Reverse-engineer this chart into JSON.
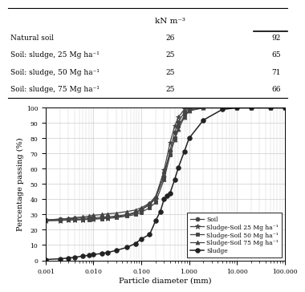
{
  "table_header_col2": "kN m⁻³",
  "table_line_right": "—",
  "table_rows": [
    {
      "label": "Natural soil",
      "kn": "26",
      "val": "92"
    },
    {
      "label": "Soil: sludge, 25 Mg ha⁻¹",
      "kn": "25",
      "val": "65"
    },
    {
      "label": "Soil: sludge, 50 Mg ha⁻¹",
      "kn": "25",
      "val": "71"
    },
    {
      "label": "Soil: sludge, 75 Mg ha⁻¹",
      "kn": "25",
      "val": "66"
    }
  ],
  "xlabel": "Particle diameter (mm)",
  "ylabel": "Percentage passing (%)",
  "ylim": [
    0,
    100
  ],
  "series": [
    {
      "label": "Soil",
      "marker": "o",
      "color": "#444444",
      "linewidth": 0.9,
      "markersize": 3.5,
      "filled": true,
      "x": [
        0.001,
        0.002,
        0.003,
        0.004,
        0.006,
        0.008,
        0.01,
        0.015,
        0.02,
        0.03,
        0.05,
        0.075,
        0.1,
        0.15,
        0.2,
        0.3,
        0.4,
        0.5,
        0.6,
        0.8,
        1.0,
        2.0,
        5.0,
        10.0,
        20.0,
        50.0,
        100.0
      ],
      "y": [
        26.5,
        27.0,
        27.2,
        27.5,
        27.7,
        27.8,
        28.0,
        28.3,
        28.5,
        29.0,
        30.0,
        31.5,
        33.5,
        37.0,
        41.0,
        55.0,
        72.0,
        84.0,
        91.0,
        97.0,
        99.5,
        100.0,
        100.0,
        100.0,
        100.0,
        100.0,
        100.0
      ]
    },
    {
      "label": "Sludge-Soil 25 Mg ha⁻¹",
      "marker": "*",
      "color": "#444444",
      "linewidth": 0.9,
      "markersize": 5.0,
      "filled": true,
      "x": [
        0.001,
        0.002,
        0.003,
        0.004,
        0.006,
        0.008,
        0.01,
        0.015,
        0.02,
        0.03,
        0.05,
        0.075,
        0.1,
        0.15,
        0.2,
        0.3,
        0.4,
        0.5,
        0.6,
        0.8,
        1.0,
        2.0,
        5.0,
        10.0,
        20.0,
        50.0,
        100.0
      ],
      "y": [
        26.0,
        26.3,
        26.5,
        26.6,
        26.8,
        27.0,
        27.2,
        27.5,
        27.8,
        28.5,
        29.5,
        31.0,
        33.0,
        36.5,
        40.5,
        59.0,
        77.0,
        88.0,
        94.0,
        99.0,
        100.0,
        100.0,
        100.0,
        100.0,
        100.0,
        100.0,
        100.0
      ]
    },
    {
      "label": "Sludge-Soil 50 Mg ha⁻¹",
      "marker": "s",
      "color": "#444444",
      "linewidth": 0.9,
      "markersize": 3.0,
      "filled": true,
      "x": [
        0.001,
        0.002,
        0.003,
        0.004,
        0.006,
        0.008,
        0.01,
        0.015,
        0.02,
        0.03,
        0.05,
        0.075,
        0.1,
        0.15,
        0.2,
        0.3,
        0.4,
        0.5,
        0.6,
        0.8,
        1.0,
        2.0,
        5.0,
        10.0,
        20.0,
        50.0,
        100.0
      ],
      "y": [
        26.0,
        26.2,
        26.4,
        26.5,
        26.7,
        26.8,
        27.0,
        27.3,
        27.5,
        28.0,
        29.0,
        30.0,
        31.5,
        34.5,
        38.0,
        53.0,
        69.0,
        80.0,
        88.0,
        95.0,
        98.5,
        100.0,
        100.0,
        100.0,
        100.0,
        100.0,
        100.0
      ]
    },
    {
      "label": "Sludge-Soil 75 Mg ha⁻¹",
      "marker": "^",
      "color": "#444444",
      "linewidth": 0.9,
      "markersize": 3.5,
      "filled": true,
      "x": [
        0.001,
        0.002,
        0.003,
        0.004,
        0.006,
        0.008,
        0.01,
        0.015,
        0.02,
        0.03,
        0.05,
        0.075,
        0.1,
        0.15,
        0.2,
        0.3,
        0.4,
        0.5,
        0.6,
        0.8,
        1.0,
        2.0,
        5.0,
        10.0,
        20.0,
        50.0,
        100.0
      ],
      "y": [
        26.5,
        27.0,
        27.5,
        28.0,
        28.5,
        29.0,
        29.5,
        30.0,
        30.5,
        31.0,
        32.0,
        33.0,
        34.5,
        37.5,
        42.0,
        58.0,
        70.0,
        79.0,
        86.0,
        94.0,
        98.0,
        100.0,
        100.0,
        100.0,
        100.0,
        100.0,
        100.0
      ]
    },
    {
      "label": "Sludge",
      "marker": "o",
      "color": "#222222",
      "linewidth": 1.1,
      "markersize": 4.0,
      "filled": true,
      "x": [
        0.001,
        0.002,
        0.003,
        0.004,
        0.006,
        0.008,
        0.01,
        0.015,
        0.02,
        0.03,
        0.05,
        0.075,
        0.1,
        0.15,
        0.2,
        0.25,
        0.3,
        0.35,
        0.4,
        0.5,
        0.6,
        0.8,
        1.0,
        2.0,
        5.0,
        10.0,
        20.0,
        50.0,
        100.0
      ],
      "y": [
        0.5,
        1.0,
        1.5,
        2.0,
        2.8,
        3.3,
        3.8,
        4.5,
        5.2,
        6.5,
        8.5,
        11.0,
        14.0,
        17.0,
        26.0,
        32.0,
        40.0,
        42.5,
        44.0,
        53.0,
        61.0,
        71.5,
        80.0,
        92.0,
        99.0,
        100.0,
        100.0,
        100.0,
        100.0
      ]
    }
  ],
  "grid_color": "#cccccc",
  "bg_color": "#ffffff",
  "xticks": [
    0.001,
    0.01,
    0.1,
    1.0,
    10.0,
    100.0
  ],
  "xtick_labels": [
    "0.001",
    "0.010",
    "0.100",
    "1.000",
    "10.000",
    "100.000"
  ],
  "yticks": [
    0,
    10,
    20,
    30,
    40,
    50,
    60,
    70,
    80,
    90,
    100
  ],
  "legend_labels": [
    "Soil",
    "Sludge-Soil 25 Mg ha⁻¹",
    "Sludge-Soil 50 Mg ha⁻¹",
    "Sludge-Soil 75 Mg ha⁻¹",
    "Sludge"
  ]
}
